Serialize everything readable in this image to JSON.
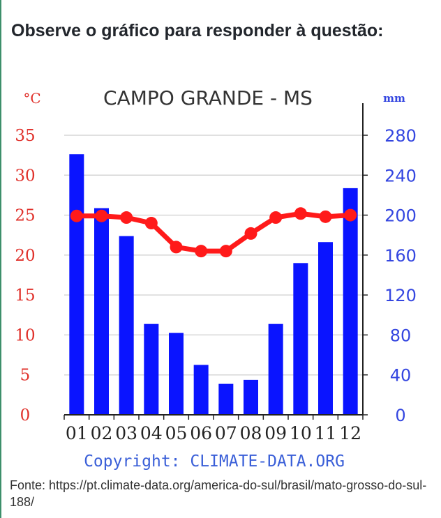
{
  "question": {
    "prompt": "Observe o gráfico para responder à questão:"
  },
  "source": {
    "text": "Fonte: https://pt.climate-data.org/america-do-sul/brasil/mato-grosso-do-sul-188/"
  },
  "colors": {
    "bar": "#0a14ff",
    "line": "#ff1a1a",
    "left_axis": "#e0302a",
    "right_axis": "#3446e0",
    "grid": "#d6d6d6"
  },
  "chart_data": {
    "type": "bar",
    "title": "CAMPO GRANDE - MS",
    "categories": [
      "01",
      "02",
      "03",
      "04",
      "05",
      "06",
      "07",
      "08",
      "09",
      "10",
      "11",
      "12"
    ],
    "left_axis": {
      "unit": "°C",
      "ylim": [
        0,
        35
      ],
      "ticks": [
        0,
        5,
        10,
        15,
        20,
        25,
        30,
        35
      ]
    },
    "right_axis": {
      "unit": "mm",
      "ylim": [
        0,
        280
      ],
      "ticks": [
        0,
        40,
        80,
        120,
        160,
        200,
        240,
        280
      ]
    },
    "series": [
      {
        "type": "bar",
        "axis": "right",
        "values": [
          261,
          207,
          179,
          91,
          82,
          50,
          31,
          35,
          91,
          152,
          173,
          227
        ]
      },
      {
        "type": "line",
        "axis": "left",
        "values": [
          24.9,
          24.9,
          24.7,
          24.0,
          21.0,
          20.5,
          20.5,
          22.7,
          24.7,
          25.2,
          24.8,
          25.0
        ]
      }
    ],
    "grid": true,
    "copyright": "Copyright: CLIMATE-DATA.ORG"
  }
}
